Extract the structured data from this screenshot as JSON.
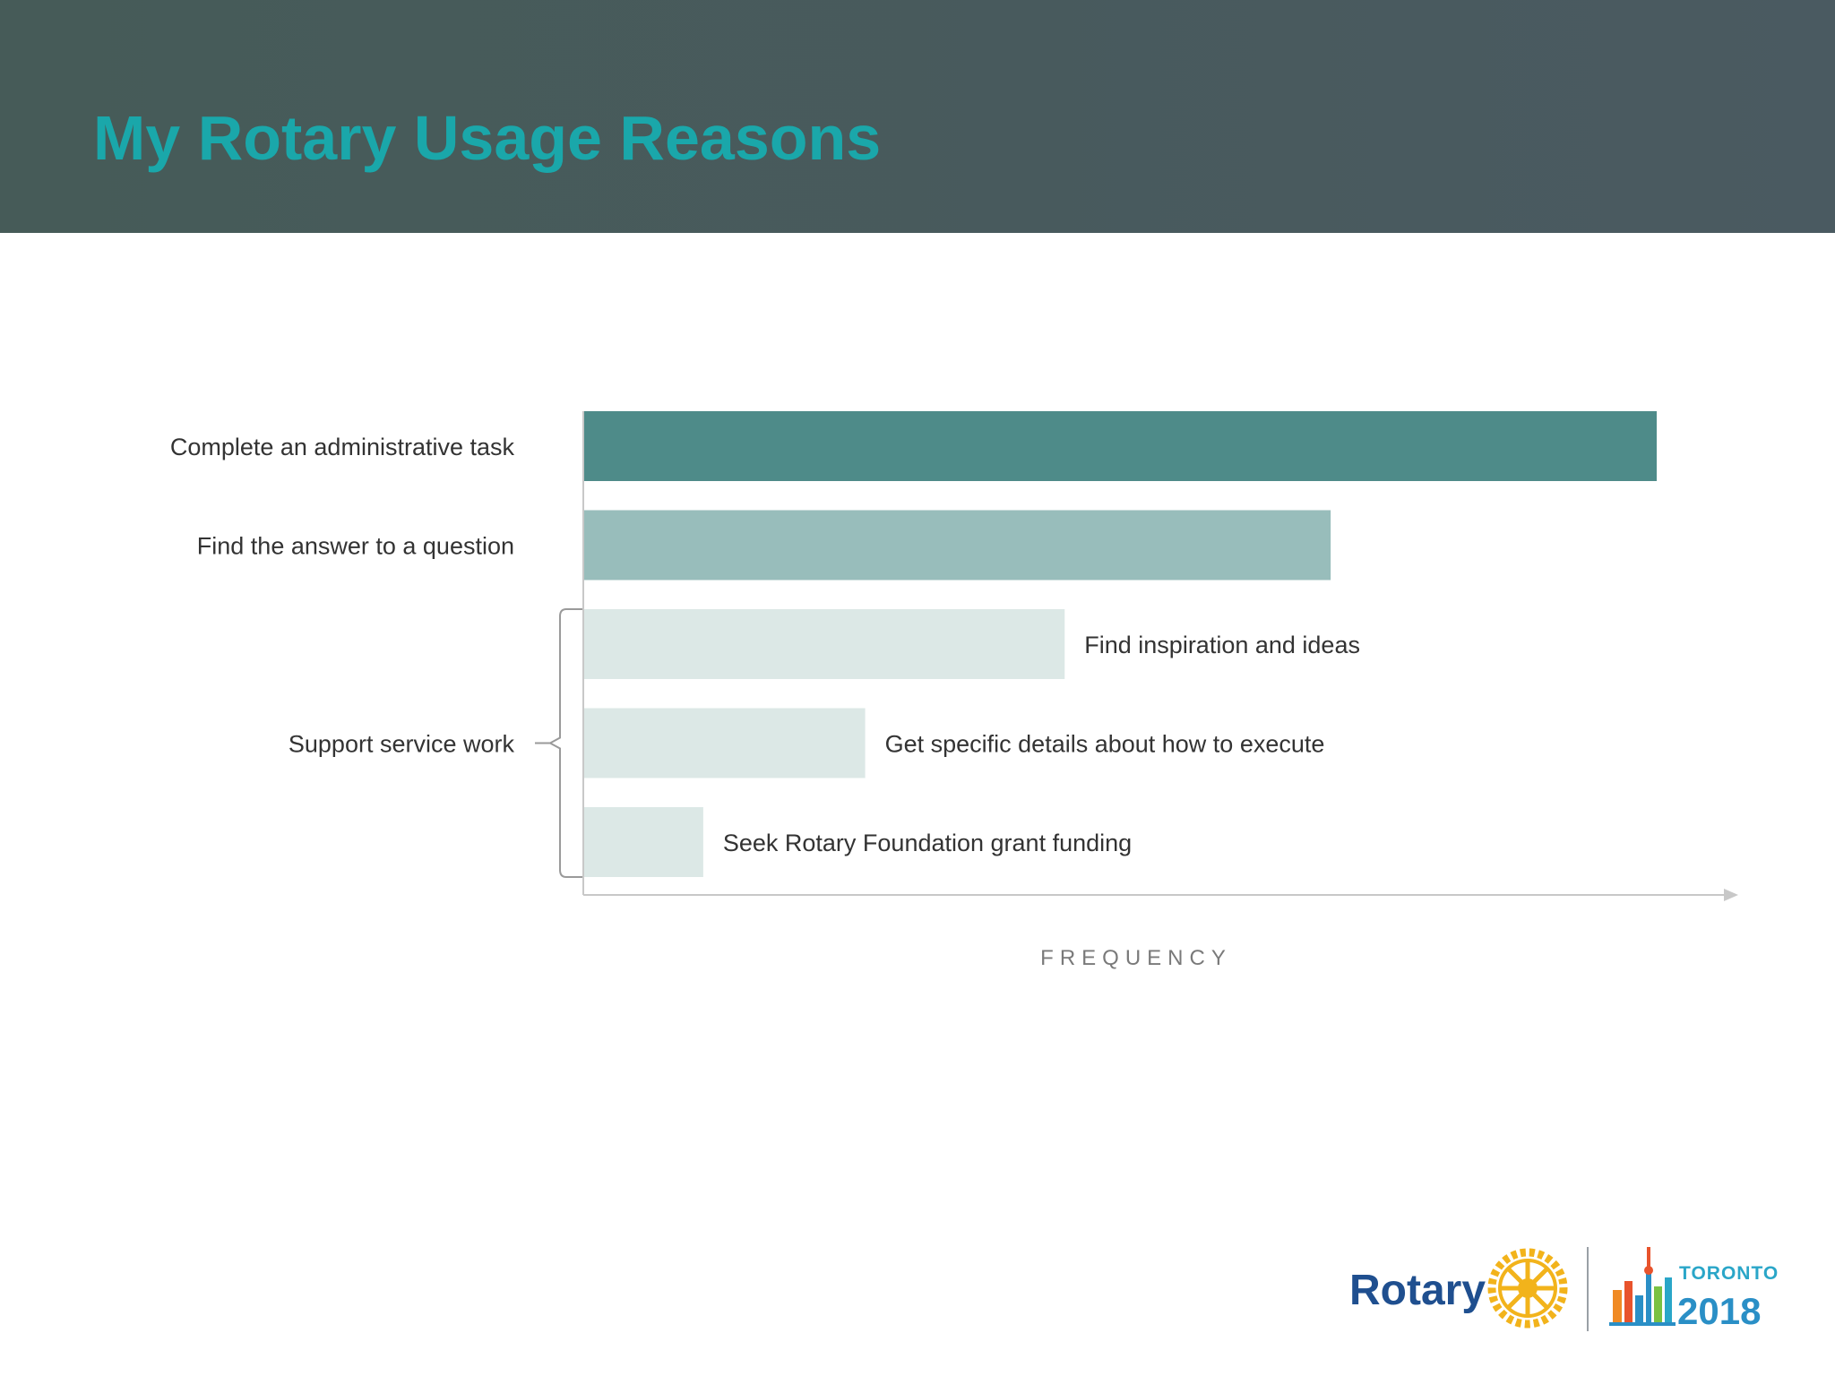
{
  "slide": {
    "title": "My Rotary Usage Reasons"
  },
  "chart_data": {
    "type": "bar",
    "orientation": "horizontal",
    "categories": [
      "Complete an administrative task",
      "Find the answer to a question",
      "Find inspiration and ideas",
      "Get specific details about how to execute",
      "Seek Rotary Foundation grant funding"
    ],
    "values": [
      100,
      69.6,
      44.8,
      26.2,
      11.1
    ],
    "xlabel": "FREQUENCY",
    "xlim": [
      0,
      107.6
    ],
    "group": {
      "label": "Support service work",
      "members": [
        2,
        3,
        4
      ]
    },
    "colors": [
      "#4e8b89",
      "#98bdbb",
      "#dce8e6",
      "#dce8e6",
      "#dce8e6"
    ],
    "grid": false,
    "legend": "none"
  },
  "logo": {
    "rotary_text": "Rotary",
    "toronto_text": "TORONTO",
    "year_text": "2018"
  },
  "colors": {
    "header_bg": "#475b5d",
    "title": "#1aa7aa",
    "axis": "#c8c8c8",
    "rotary_gold": "#f2b31b",
    "rotary_blue": "#1f4f8f"
  }
}
